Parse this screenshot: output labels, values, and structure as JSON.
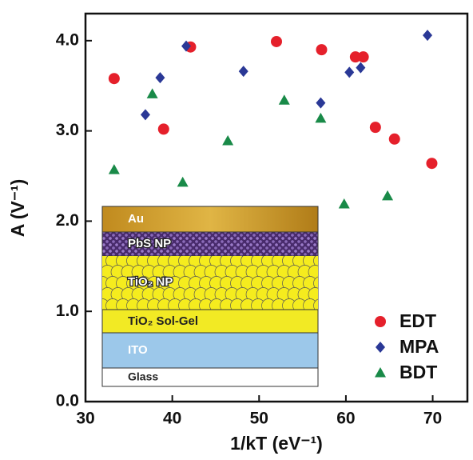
{
  "chart_data": {
    "type": "scatter",
    "xlabel": "1/kT (eV⁻¹)",
    "ylabel": "A (V⁻¹)",
    "xlim": [
      30,
      74
    ],
    "ylim": [
      0,
      4.3
    ],
    "xticks": [
      30,
      40,
      50,
      60,
      70
    ],
    "yticks": [
      {
        "value": 0,
        "label": "0.0"
      },
      {
        "value": 1,
        "label": "1.0"
      },
      {
        "value": 2,
        "label": "2.0"
      },
      {
        "value": 3,
        "label": "3.0"
      },
      {
        "value": 4,
        "label": "4.0"
      }
    ],
    "legend": "lower right",
    "series": [
      {
        "name": "EDT",
        "color": "#e5202b",
        "marker": "circle",
        "x": [
          33.3,
          39.0,
          42.1,
          52.0,
          57.2,
          61.1,
          62.0,
          63.4,
          65.6,
          69.9
        ],
        "values": [
          3.58,
          3.02,
          3.93,
          3.99,
          3.9,
          3.82,
          3.82,
          3.04,
          2.91,
          2.64
        ]
      },
      {
        "name": "MPA",
        "color": "#2a3896",
        "marker": "diamond",
        "x": [
          36.9,
          38.6,
          41.6,
          48.2,
          57.1,
          60.4,
          61.7,
          69.4
        ],
        "values": [
          3.18,
          3.59,
          3.94,
          3.66,
          3.31,
          3.65,
          3.7,
          4.06
        ]
      },
      {
        "name": "BDT",
        "color": "#198a48",
        "marker": "triangle",
        "x": [
          33.3,
          37.7,
          41.2,
          46.4,
          52.9,
          57.1,
          59.8,
          64.8
        ],
        "values": [
          2.57,
          3.41,
          2.43,
          2.89,
          3.34,
          3.14,
          2.19,
          2.28
        ]
      }
    ],
    "annotations": [
      "Au",
      "PbS NP",
      "TiO₂ NP",
      "TiO₂ Sol-Gel",
      "ITO",
      "Glass"
    ]
  }
}
